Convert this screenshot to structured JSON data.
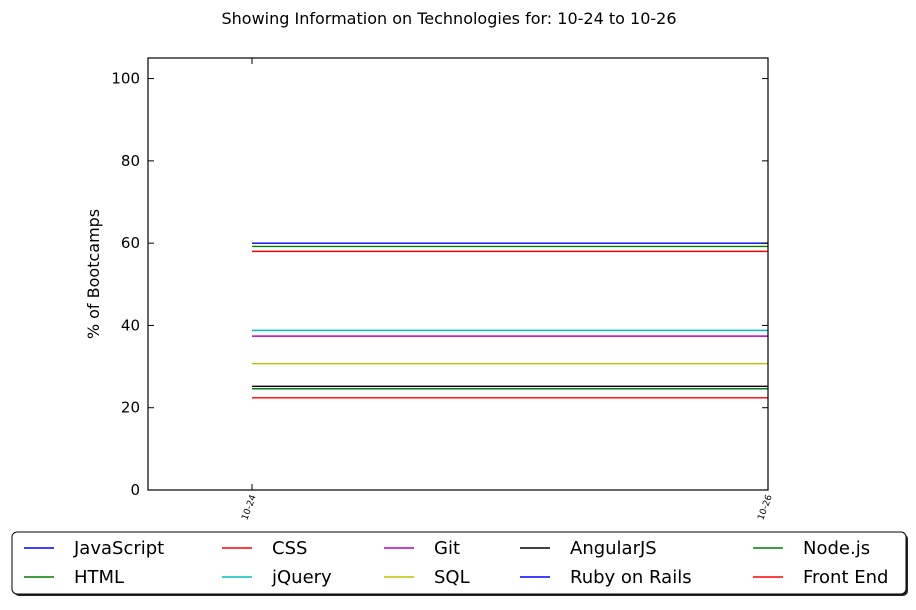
{
  "chart_data": {
    "type": "line",
    "title": "Showing Information on Technologies for: 10-24 to 10-26",
    "xlabel": "",
    "ylabel": "% of Bootcamps",
    "x": [
      "10-24",
      "10-26"
    ],
    "ylim": [
      0,
      105
    ],
    "yticks": [
      0,
      20,
      40,
      60,
      80,
      100
    ],
    "grid": false,
    "legend_position": "bottom",
    "series": [
      {
        "name": "JavaScript",
        "color": "#0000ff",
        "values": [
          60.0,
          60.0
        ]
      },
      {
        "name": "HTML",
        "color": "#008000",
        "values": [
          59.2,
          59.2
        ]
      },
      {
        "name": "CSS",
        "color": "#ff0000",
        "values": [
          58.0,
          58.0
        ]
      },
      {
        "name": "jQuery",
        "color": "#00bfbf",
        "values": [
          38.8,
          38.8
        ]
      },
      {
        "name": "Git",
        "color": "#bf00bf",
        "values": [
          37.4,
          37.4
        ]
      },
      {
        "name": "SQL",
        "color": "#bfbf00",
        "values": [
          30.7,
          30.7
        ]
      },
      {
        "name": "AngularJS",
        "color": "#000000",
        "values": [
          25.2,
          25.2
        ]
      },
      {
        "name": "Ruby on Rails",
        "color": "#0000ff",
        "values": [
          24.6,
          24.6
        ]
      },
      {
        "name": "Node.js",
        "color": "#008000",
        "values": [
          24.6,
          24.6
        ]
      },
      {
        "name": "Front End",
        "color": "#ff0000",
        "values": [
          22.4,
          22.4
        ]
      }
    ]
  }
}
